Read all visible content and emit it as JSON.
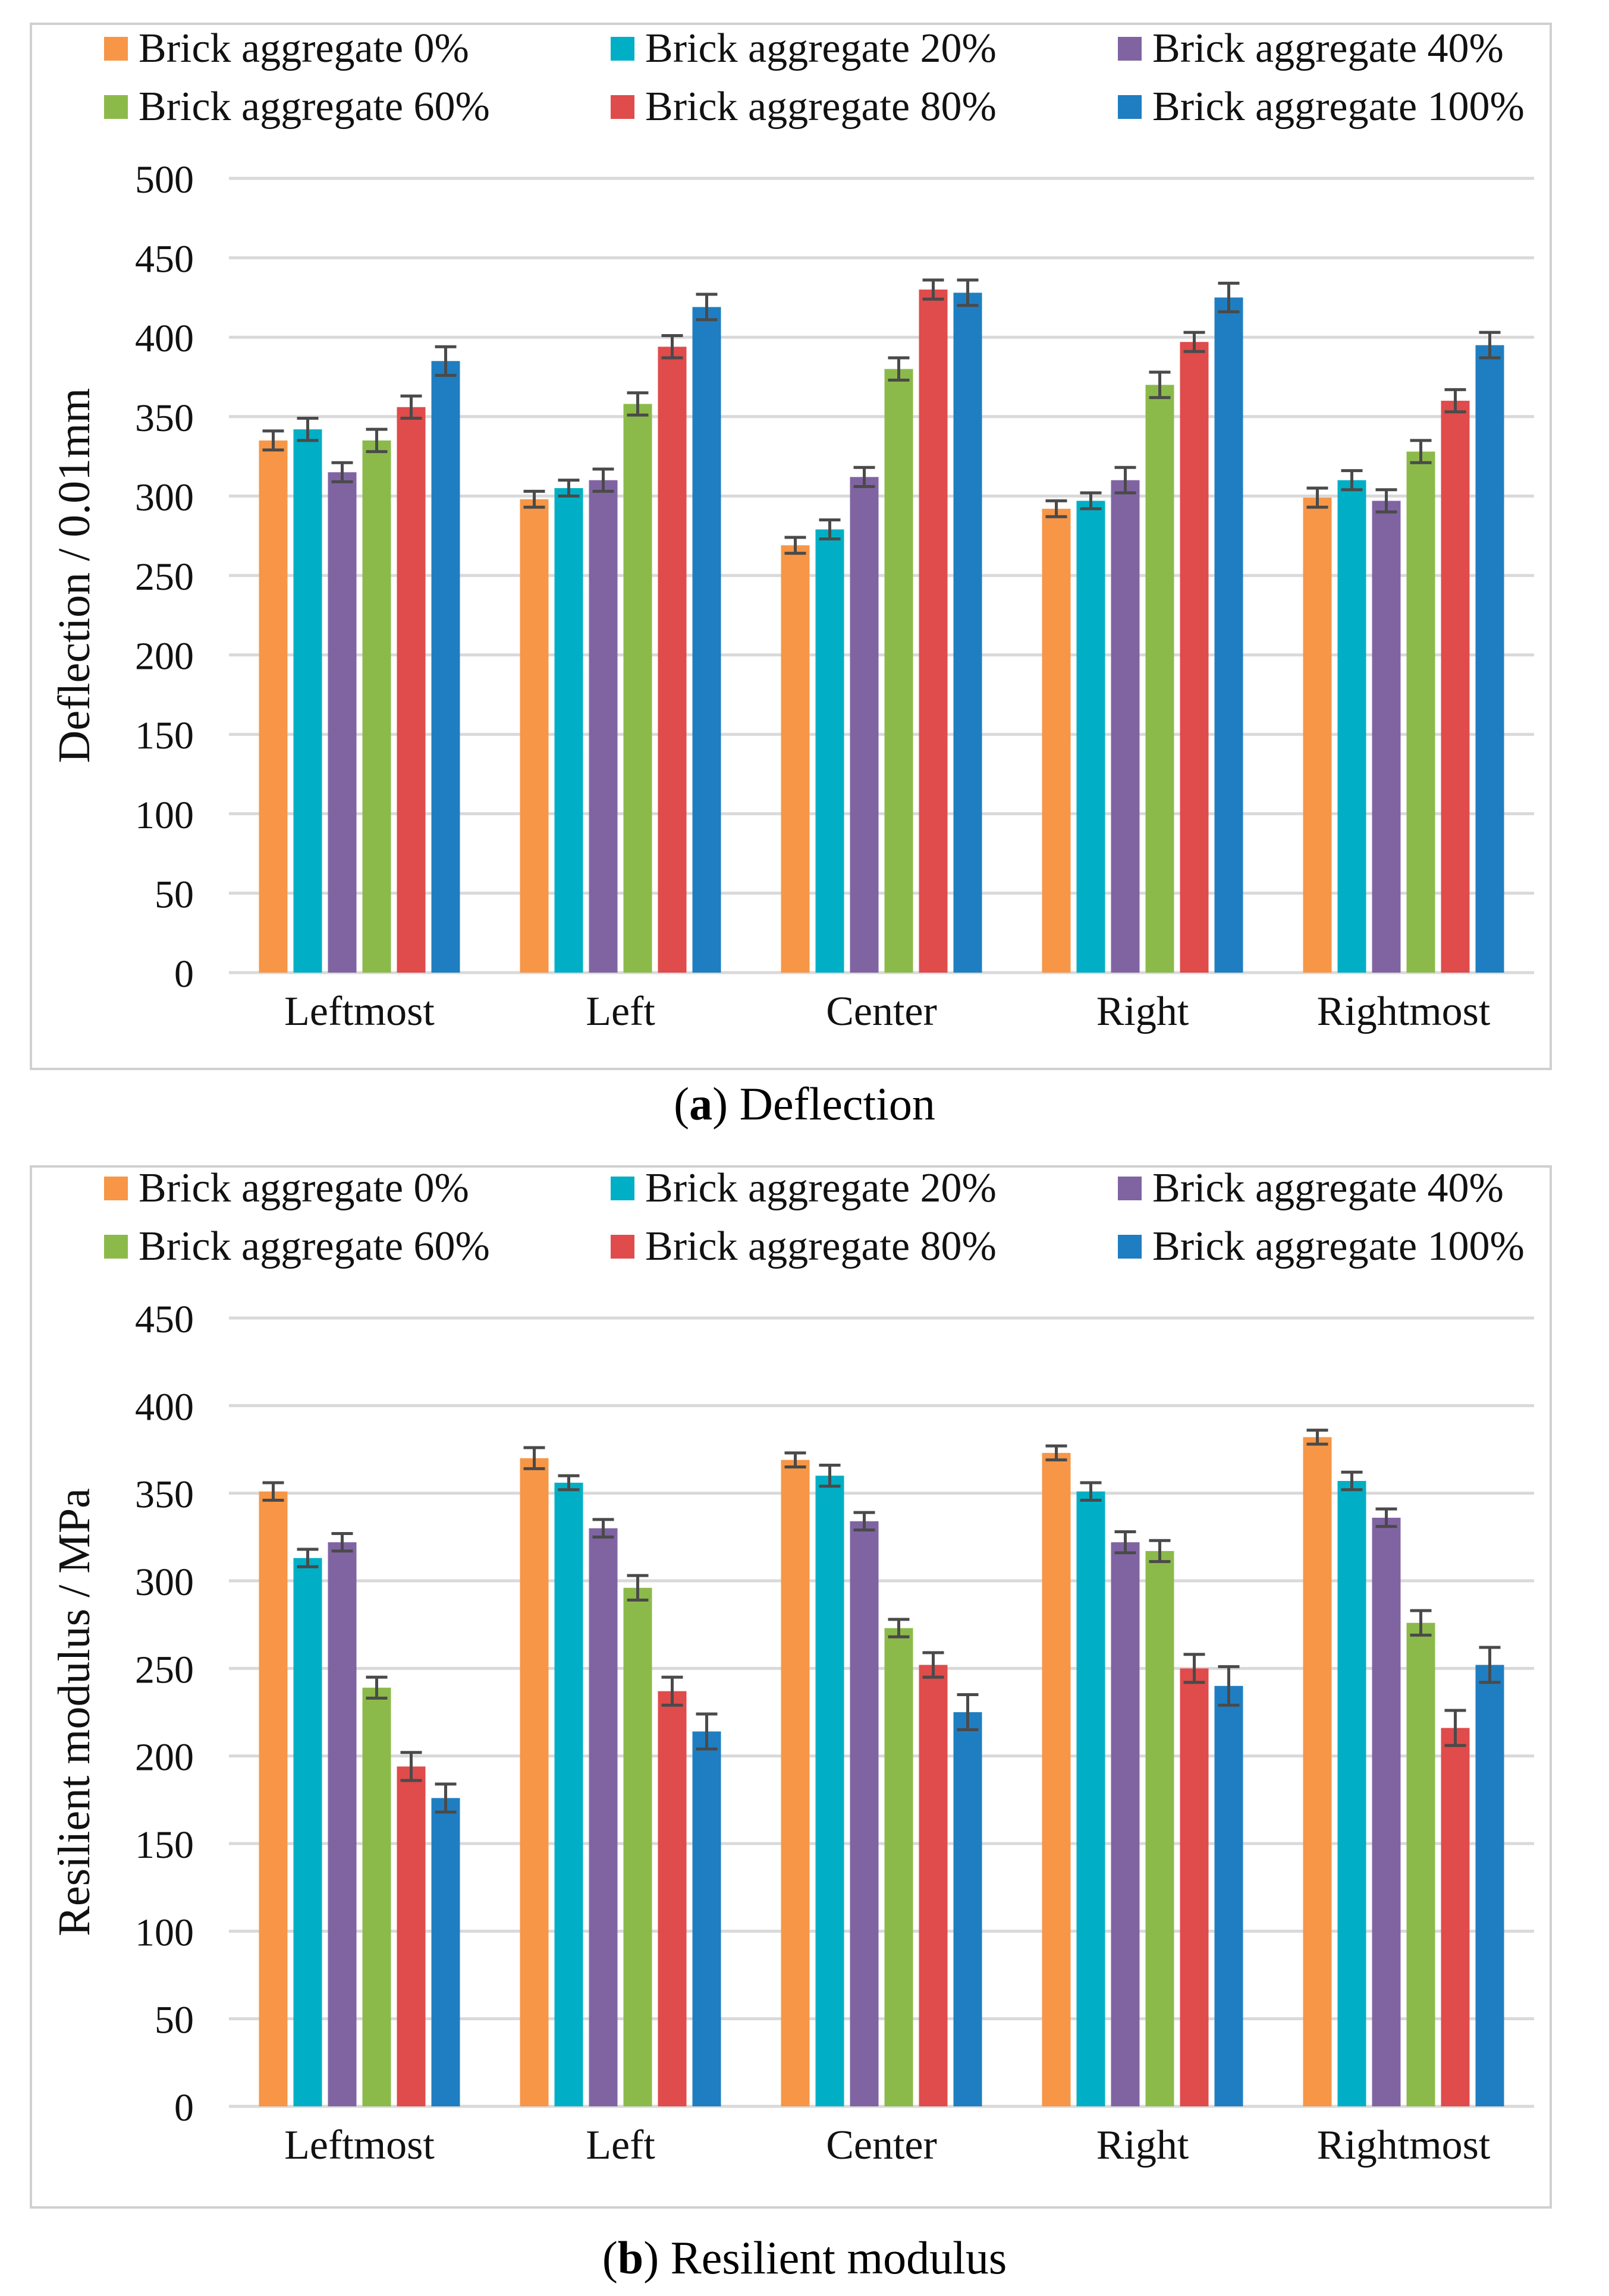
{
  "chart_data": [
    {
      "type": "bar",
      "panel_letter": "a",
      "caption": "Deflection",
      "ylabel": "Deflection / 0.01mm",
      "xlabel": "",
      "ylim": [
        0,
        500
      ],
      "yticks": [
        0,
        50,
        100,
        150,
        200,
        250,
        300,
        350,
        400,
        450,
        500
      ],
      "grid": true,
      "legend_position": "top",
      "categories": [
        "Leftmost",
        "Left",
        "Center",
        "Right",
        "Rightmost"
      ],
      "series": [
        {
          "name": "Brick aggregate 0%",
          "color": "#F79646",
          "values": [
            335,
            298,
            269,
            292,
            299
          ],
          "errors": [
            6,
            5,
            5,
            5,
            6
          ]
        },
        {
          "name": "Brick aggregate 20%",
          "color": "#00AFC5",
          "values": [
            342,
            305,
            279,
            297,
            310
          ],
          "errors": [
            7,
            5,
            6,
            5,
            6
          ]
        },
        {
          "name": "Brick aggregate 40%",
          "color": "#8064A2",
          "values": [
            315,
            310,
            312,
            310,
            297
          ],
          "errors": [
            6,
            7,
            6,
            8,
            7
          ]
        },
        {
          "name": "Brick aggregate 60%",
          "color": "#8CBA4A",
          "values": [
            335,
            358,
            380,
            370,
            328
          ],
          "errors": [
            7,
            7,
            7,
            8,
            7
          ]
        },
        {
          "name": "Brick aggregate 80%",
          "color": "#E04B4B",
          "values": [
            356,
            394,
            430,
            397,
            360
          ],
          "errors": [
            7,
            7,
            6,
            6,
            7
          ]
        },
        {
          "name": "Brick aggregate 100%",
          "color": "#1F7EC1",
          "values": [
            385,
            419,
            428,
            425,
            395
          ],
          "errors": [
            9,
            8,
            8,
            9,
            8
          ]
        }
      ]
    },
    {
      "type": "bar",
      "panel_letter": "b",
      "caption": "Resilient modulus",
      "ylabel": "Resilient modulus / MPa",
      "xlabel": "",
      "ylim": [
        0,
        450
      ],
      "yticks": [
        0,
        50,
        100,
        150,
        200,
        250,
        300,
        350,
        400,
        450
      ],
      "grid": true,
      "legend_position": "top",
      "categories": [
        "Leftmost",
        "Left",
        "Center",
        "Right",
        "Rightmost"
      ],
      "series": [
        {
          "name": "Brick aggregate 0%",
          "color": "#F79646",
          "values": [
            351,
            370,
            369,
            373,
            382
          ],
          "errors": [
            5,
            6,
            4,
            4,
            4
          ]
        },
        {
          "name": "Brick aggregate 20%",
          "color": "#00AFC5",
          "values": [
            313,
            356,
            360,
            351,
            357
          ],
          "errors": [
            5,
            4,
            6,
            5,
            5
          ]
        },
        {
          "name": "Brick aggregate 40%",
          "color": "#8064A2",
          "values": [
            322,
            330,
            334,
            322,
            336
          ],
          "errors": [
            5,
            5,
            5,
            6,
            5
          ]
        },
        {
          "name": "Brick aggregate 60%",
          "color": "#8CBA4A",
          "values": [
            239,
            296,
            273,
            317,
            276
          ],
          "errors": [
            6,
            7,
            5,
            6,
            7
          ]
        },
        {
          "name": "Brick aggregate 80%",
          "color": "#E04B4B",
          "values": [
            194,
            237,
            252,
            250,
            216
          ],
          "errors": [
            8,
            8,
            7,
            8,
            10
          ]
        },
        {
          "name": "Brick aggregate 100%",
          "color": "#1F7EC1",
          "values": [
            176,
            214,
            225,
            240,
            252
          ],
          "errors": [
            8,
            10,
            10,
            11,
            10
          ]
        }
      ]
    }
  ]
}
